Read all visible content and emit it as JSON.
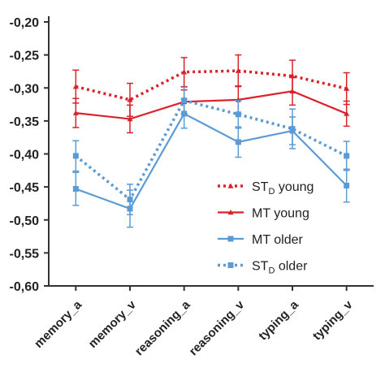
{
  "chart_data": {
    "type": "line",
    "categories": [
      "memory_a",
      "memory_v",
      "reasoning_a",
      "reasoning_v",
      "typing_a",
      "typing_v"
    ],
    "y_ticks": [
      "-0,20",
      "-0,25",
      "-0,30",
      "-0,35",
      "-0,40",
      "-0,45",
      "-0,50",
      "-0,55",
      "-0,60"
    ],
    "ylim": [
      -0.6,
      -0.2
    ],
    "grid": false,
    "legend_position": "lower-right",
    "series": [
      {
        "name": "ST",
        "name_sub": "D",
        "name_suffix": " young",
        "color": "#d9222a",
        "marker": "triangle",
        "dash": "dotted",
        "values": [
          -0.298,
          -0.318,
          -0.276,
          -0.274,
          -0.282,
          -0.301
        ],
        "errors": [
          0.025,
          0.025,
          0.022,
          0.024,
          0.024,
          0.024
        ]
      },
      {
        "name": "MT young",
        "color": "#d9222a",
        "marker": "triangle",
        "dash": "solid",
        "values": [
          -0.338,
          -0.347,
          -0.321,
          -0.318,
          -0.305,
          -0.339
        ],
        "errors": [
          0.022,
          0.021,
          0.018,
          0.021,
          0.021,
          0.019
        ]
      },
      {
        "name": "MT older",
        "color": "#5b9bd5",
        "marker": "square",
        "dash": "solid",
        "values": [
          -0.453,
          -0.483,
          -0.339,
          -0.382,
          -0.365,
          -0.448
        ],
        "errors": [
          0.025,
          0.028,
          0.022,
          0.023,
          0.021,
          0.025
        ]
      },
      {
        "name": "ST",
        "name_sub": "D",
        "name_suffix": " older",
        "color": "#5b9bd5",
        "marker": "square",
        "dash": "dotted",
        "values": [
          -0.403,
          -0.469,
          -0.319,
          -0.34,
          -0.362,
          -0.403
        ],
        "errors": [
          0.023,
          0.023,
          0.02,
          0.021,
          0.03,
          0.022
        ]
      }
    ]
  }
}
